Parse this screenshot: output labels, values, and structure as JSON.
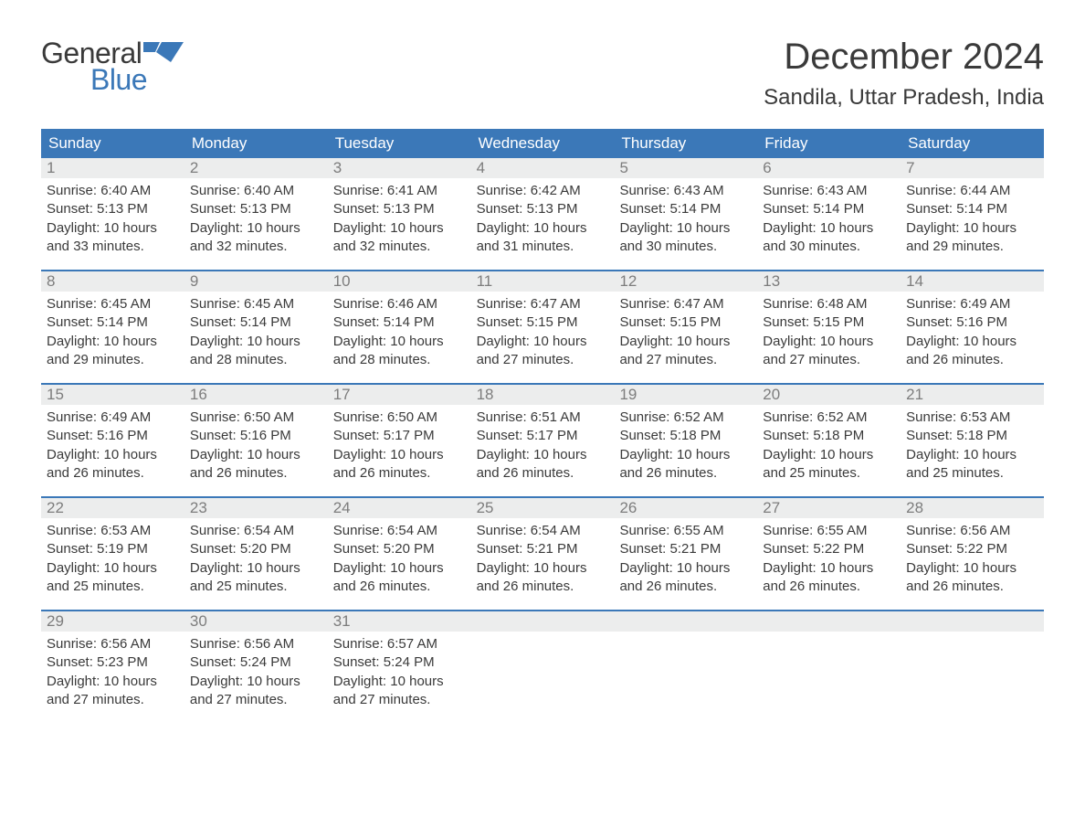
{
  "brand": {
    "word1": "General",
    "word2": "Blue"
  },
  "title": "December 2024",
  "location": "Sandila, Uttar Pradesh, India",
  "colors": {
    "header_bg": "#3b78b8",
    "header_text": "#ffffff",
    "daynum_bg": "#eceded",
    "daynum_text": "#7d7d7d",
    "body_text": "#3a3a3a",
    "week_border": "#3b78b8",
    "logo_accent": "#3b78b8"
  },
  "layout": {
    "columns": 7,
    "day_font_size": 15,
    "header_font_size": 17,
    "title_font_size": 40,
    "location_font_size": 24
  },
  "weekdays": [
    "Sunday",
    "Monday",
    "Tuesday",
    "Wednesday",
    "Thursday",
    "Friday",
    "Saturday"
  ],
  "weeks": [
    [
      {
        "n": "1",
        "sunrise": "Sunrise: 6:40 AM",
        "sunset": "Sunset: 5:13 PM",
        "d1": "Daylight: 10 hours",
        "d2": "and 33 minutes."
      },
      {
        "n": "2",
        "sunrise": "Sunrise: 6:40 AM",
        "sunset": "Sunset: 5:13 PM",
        "d1": "Daylight: 10 hours",
        "d2": "and 32 minutes."
      },
      {
        "n": "3",
        "sunrise": "Sunrise: 6:41 AM",
        "sunset": "Sunset: 5:13 PM",
        "d1": "Daylight: 10 hours",
        "d2": "and 32 minutes."
      },
      {
        "n": "4",
        "sunrise": "Sunrise: 6:42 AM",
        "sunset": "Sunset: 5:13 PM",
        "d1": "Daylight: 10 hours",
        "d2": "and 31 minutes."
      },
      {
        "n": "5",
        "sunrise": "Sunrise: 6:43 AM",
        "sunset": "Sunset: 5:14 PM",
        "d1": "Daylight: 10 hours",
        "d2": "and 30 minutes."
      },
      {
        "n": "6",
        "sunrise": "Sunrise: 6:43 AM",
        "sunset": "Sunset: 5:14 PM",
        "d1": "Daylight: 10 hours",
        "d2": "and 30 minutes."
      },
      {
        "n": "7",
        "sunrise": "Sunrise: 6:44 AM",
        "sunset": "Sunset: 5:14 PM",
        "d1": "Daylight: 10 hours",
        "d2": "and 29 minutes."
      }
    ],
    [
      {
        "n": "8",
        "sunrise": "Sunrise: 6:45 AM",
        "sunset": "Sunset: 5:14 PM",
        "d1": "Daylight: 10 hours",
        "d2": "and 29 minutes."
      },
      {
        "n": "9",
        "sunrise": "Sunrise: 6:45 AM",
        "sunset": "Sunset: 5:14 PM",
        "d1": "Daylight: 10 hours",
        "d2": "and 28 minutes."
      },
      {
        "n": "10",
        "sunrise": "Sunrise: 6:46 AM",
        "sunset": "Sunset: 5:14 PM",
        "d1": "Daylight: 10 hours",
        "d2": "and 28 minutes."
      },
      {
        "n": "11",
        "sunrise": "Sunrise: 6:47 AM",
        "sunset": "Sunset: 5:15 PM",
        "d1": "Daylight: 10 hours",
        "d2": "and 27 minutes."
      },
      {
        "n": "12",
        "sunrise": "Sunrise: 6:47 AM",
        "sunset": "Sunset: 5:15 PM",
        "d1": "Daylight: 10 hours",
        "d2": "and 27 minutes."
      },
      {
        "n": "13",
        "sunrise": "Sunrise: 6:48 AM",
        "sunset": "Sunset: 5:15 PM",
        "d1": "Daylight: 10 hours",
        "d2": "and 27 minutes."
      },
      {
        "n": "14",
        "sunrise": "Sunrise: 6:49 AM",
        "sunset": "Sunset: 5:16 PM",
        "d1": "Daylight: 10 hours",
        "d2": "and 26 minutes."
      }
    ],
    [
      {
        "n": "15",
        "sunrise": "Sunrise: 6:49 AM",
        "sunset": "Sunset: 5:16 PM",
        "d1": "Daylight: 10 hours",
        "d2": "and 26 minutes."
      },
      {
        "n": "16",
        "sunrise": "Sunrise: 6:50 AM",
        "sunset": "Sunset: 5:16 PM",
        "d1": "Daylight: 10 hours",
        "d2": "and 26 minutes."
      },
      {
        "n": "17",
        "sunrise": "Sunrise: 6:50 AM",
        "sunset": "Sunset: 5:17 PM",
        "d1": "Daylight: 10 hours",
        "d2": "and 26 minutes."
      },
      {
        "n": "18",
        "sunrise": "Sunrise: 6:51 AM",
        "sunset": "Sunset: 5:17 PM",
        "d1": "Daylight: 10 hours",
        "d2": "and 26 minutes."
      },
      {
        "n": "19",
        "sunrise": "Sunrise: 6:52 AM",
        "sunset": "Sunset: 5:18 PM",
        "d1": "Daylight: 10 hours",
        "d2": "and 26 minutes."
      },
      {
        "n": "20",
        "sunrise": "Sunrise: 6:52 AM",
        "sunset": "Sunset: 5:18 PM",
        "d1": "Daylight: 10 hours",
        "d2": "and 25 minutes."
      },
      {
        "n": "21",
        "sunrise": "Sunrise: 6:53 AM",
        "sunset": "Sunset: 5:18 PM",
        "d1": "Daylight: 10 hours",
        "d2": "and 25 minutes."
      }
    ],
    [
      {
        "n": "22",
        "sunrise": "Sunrise: 6:53 AM",
        "sunset": "Sunset: 5:19 PM",
        "d1": "Daylight: 10 hours",
        "d2": "and 25 minutes."
      },
      {
        "n": "23",
        "sunrise": "Sunrise: 6:54 AM",
        "sunset": "Sunset: 5:20 PM",
        "d1": "Daylight: 10 hours",
        "d2": "and 25 minutes."
      },
      {
        "n": "24",
        "sunrise": "Sunrise: 6:54 AM",
        "sunset": "Sunset: 5:20 PM",
        "d1": "Daylight: 10 hours",
        "d2": "and 26 minutes."
      },
      {
        "n": "25",
        "sunrise": "Sunrise: 6:54 AM",
        "sunset": "Sunset: 5:21 PM",
        "d1": "Daylight: 10 hours",
        "d2": "and 26 minutes."
      },
      {
        "n": "26",
        "sunrise": "Sunrise: 6:55 AM",
        "sunset": "Sunset: 5:21 PM",
        "d1": "Daylight: 10 hours",
        "d2": "and 26 minutes."
      },
      {
        "n": "27",
        "sunrise": "Sunrise: 6:55 AM",
        "sunset": "Sunset: 5:22 PM",
        "d1": "Daylight: 10 hours",
        "d2": "and 26 minutes."
      },
      {
        "n": "28",
        "sunrise": "Sunrise: 6:56 AM",
        "sunset": "Sunset: 5:22 PM",
        "d1": "Daylight: 10 hours",
        "d2": "and 26 minutes."
      }
    ],
    [
      {
        "n": "29",
        "sunrise": "Sunrise: 6:56 AM",
        "sunset": "Sunset: 5:23 PM",
        "d1": "Daylight: 10 hours",
        "d2": "and 27 minutes."
      },
      {
        "n": "30",
        "sunrise": "Sunrise: 6:56 AM",
        "sunset": "Sunset: 5:24 PM",
        "d1": "Daylight: 10 hours",
        "d2": "and 27 minutes."
      },
      {
        "n": "31",
        "sunrise": "Sunrise: 6:57 AM",
        "sunset": "Sunset: 5:24 PM",
        "d1": "Daylight: 10 hours",
        "d2": "and 27 minutes."
      },
      {
        "empty": true
      },
      {
        "empty": true
      },
      {
        "empty": true
      },
      {
        "empty": true
      }
    ]
  ]
}
